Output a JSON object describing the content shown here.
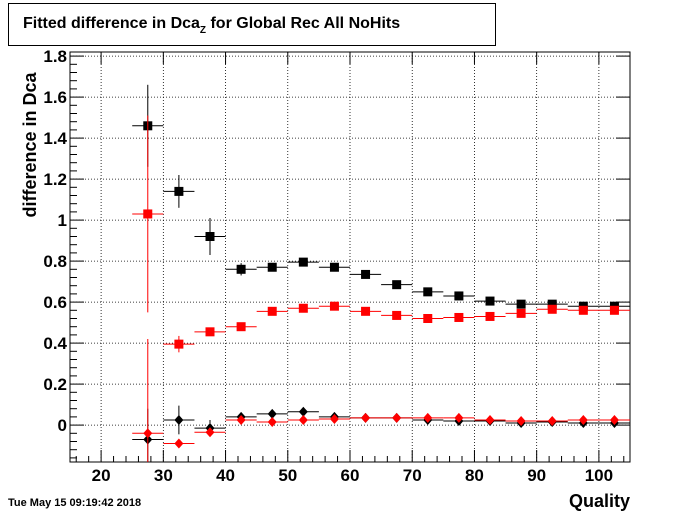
{
  "title": {
    "prefix": "Fitted difference in Dca",
    "subscript": "Z",
    "suffix": " for Global Rec All NoHits"
  },
  "timestamp": "Tue May 15 09:19:42 2018",
  "chart_data": {
    "type": "scatter",
    "xlabel": "Quality",
    "ylabel": "difference in Dca",
    "xlim": [
      15,
      105
    ],
    "ylim": [
      -0.18,
      1.82
    ],
    "xticks": [
      20,
      30,
      40,
      50,
      60,
      70,
      80,
      90,
      100
    ],
    "yticks": [
      0,
      0.2,
      0.4,
      0.6,
      0.8,
      1,
      1.2,
      1.4,
      1.6,
      1.8
    ],
    "ytick_labels": [
      "0",
      "0.2",
      "0.4",
      "0.6",
      "0.8",
      "1",
      "1.2",
      "1.4",
      "1.6",
      "1.8"
    ],
    "grid": true,
    "x_bin_halfwidth": 2.5,
    "series": [
      {
        "marker": "square",
        "color": "#000000",
        "x": [
          27.5,
          32.5,
          37.5,
          42.5,
          47.5,
          52.5,
          57.5,
          62.5,
          67.5,
          72.5,
          77.5,
          82.5,
          87.5,
          92.5,
          97.5,
          102.5
        ],
        "y": [
          1.46,
          1.14,
          0.92,
          0.76,
          0.77,
          0.795,
          0.77,
          0.735,
          0.685,
          0.65,
          0.63,
          0.605,
          0.59,
          0.59,
          0.58,
          0.58
        ],
        "yerr": [
          0.2,
          0.08,
          0.09,
          0.03,
          0.02,
          0.015,
          0.015,
          0.012,
          0.012,
          0.01,
          0.01,
          0.01,
          0.01,
          0.01,
          0.01,
          0.01
        ]
      },
      {
        "marker": "square",
        "color": "#ff0000",
        "x": [
          27.5,
          32.5,
          37.5,
          42.5,
          47.5,
          52.5,
          57.5,
          62.5,
          67.5,
          72.5,
          77.5,
          82.5,
          87.5,
          92.5,
          97.5,
          102.5
        ],
        "y": [
          1.03,
          0.395,
          0.455,
          0.48,
          0.555,
          0.57,
          0.58,
          0.555,
          0.535,
          0.52,
          0.525,
          0.53,
          0.545,
          0.565,
          0.56,
          0.56
        ],
        "yerr": [
          0.48,
          0.04,
          0.02,
          0.015,
          0.012,
          0.01,
          0.01,
          0.01,
          0.01,
          0.01,
          0.01,
          0.01,
          0.01,
          0.01,
          0.01,
          0.01
        ]
      },
      {
        "marker": "diamond",
        "color": "#000000",
        "x": [
          27.5,
          32.5,
          37.5,
          42.5,
          47.5,
          52.5,
          57.5,
          62.5,
          67.5,
          72.5,
          77.5,
          82.5,
          87.5,
          92.5,
          97.5,
          102.5
        ],
        "y": [
          -0.07,
          0.025,
          -0.015,
          0.04,
          0.055,
          0.065,
          0.04,
          0.035,
          0.035,
          0.025,
          0.02,
          0.02,
          0.01,
          0.015,
          0.01,
          0.01
        ],
        "yerr": [
          0.15,
          0.07,
          0.04,
          0.02,
          0.015,
          0.012,
          0.01,
          0.01,
          0.01,
          0.01,
          0.01,
          0.01,
          0.01,
          0.01,
          0.01,
          0.01
        ]
      },
      {
        "marker": "diamond",
        "color": "#ff0000",
        "x": [
          27.5,
          32.5,
          37.5,
          42.5,
          47.5,
          52.5,
          57.5,
          62.5,
          67.5,
          72.5,
          77.5,
          82.5,
          87.5,
          92.5,
          97.5,
          102.5
        ],
        "y": [
          -0.04,
          -0.09,
          -0.035,
          0.025,
          0.015,
          0.025,
          0.03,
          0.035,
          0.035,
          0.035,
          0.035,
          0.025,
          0.02,
          0.02,
          0.025,
          0.025
        ],
        "yerr": [
          0.46,
          0.02,
          0.02,
          0.012,
          0.01,
          0.01,
          0.01,
          0.01,
          0.01,
          0.01,
          0.01,
          0.01,
          0.01,
          0.01,
          0.01,
          0.01
        ]
      }
    ]
  }
}
